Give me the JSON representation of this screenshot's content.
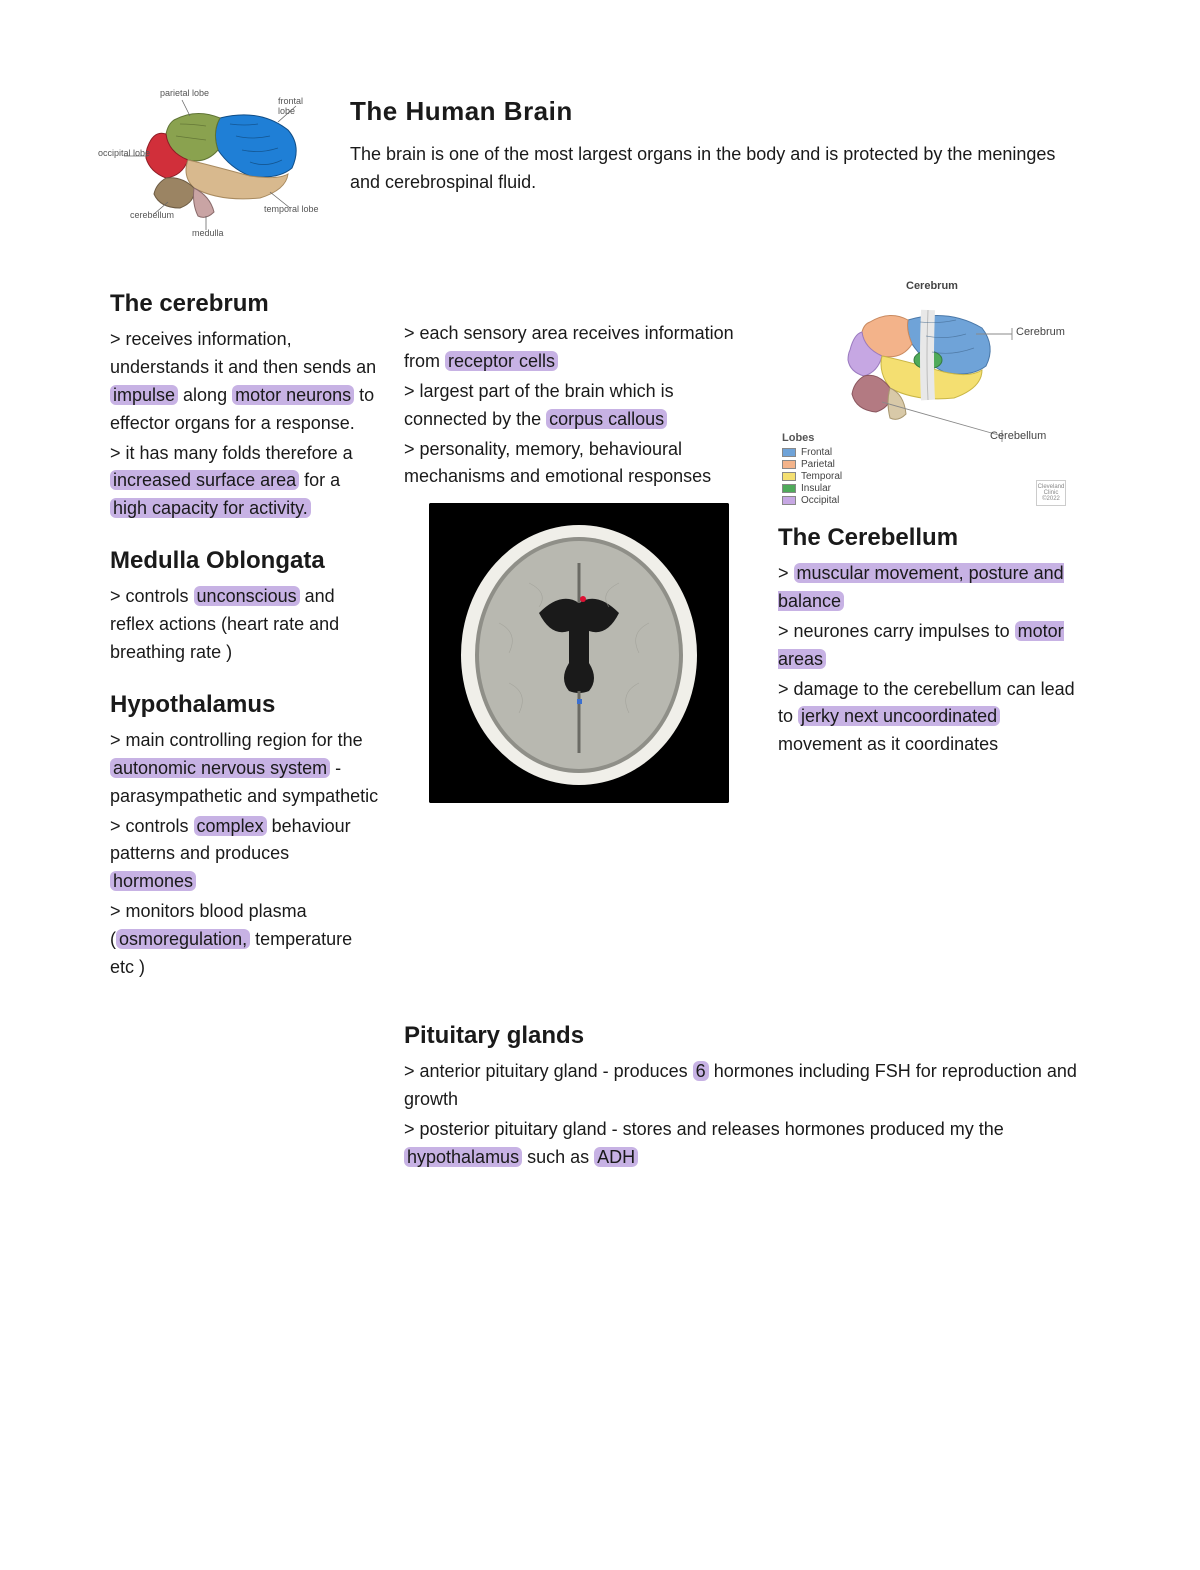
{
  "colors": {
    "highlight": "#c7b2e4",
    "text": "#1a1a1a",
    "background": "#ffffff"
  },
  "header": {
    "title": "The Human Brain",
    "intro": "The brain is one of the most largest organs in the body and is protected by the meninges and cerebrospinal fluid."
  },
  "brain_diagram": {
    "labels": {
      "parietal": "parietal lobe",
      "frontal": "frontal lobe",
      "occipital": "occipital lobe",
      "temporal": "temporal lobe",
      "cerebellum": "cerebellum",
      "medulla": "medulla"
    },
    "region_colors": {
      "frontal": "#1f7fd6",
      "parietal": "#8aa24f",
      "occipital": "#d12f3a",
      "temporal": "#d8b98e",
      "cerebellum": "#9b8463",
      "stem": "#c9a4a4"
    }
  },
  "cerebrum": {
    "heading": "The cerebrum",
    "col1_parts": [
      " > receives information, understands it and then sends an ",
      "impulse",
      " along ",
      "motor neurons",
      " to effector organs for a response."
    ],
    "col1b_parts": [
      " > it has many folds therefore a ",
      "increased surface area",
      " for a ",
      "high capacity for activity."
    ],
    "col2a_parts": [
      "> each sensory area receives information from ",
      "receptor cells"
    ],
    "col2b_parts": [
      " > largest part of the brain which is connected by the ",
      "corpus callous"
    ],
    "col2c": "> personality, memory, behavioural mechanisms and emotional responses"
  },
  "medulla": {
    "heading": "Medulla Oblongata",
    "parts": [
      "> controls ",
      "unconscious",
      " and reflex actions (heart rate and breathing rate )"
    ]
  },
  "hypothalamus": {
    "heading": "Hypothalamus",
    "p1_parts": [
      "> main controlling region for the ",
      "autonomic nervous system",
      " - parasympathetic and sympathetic"
    ],
    "p2_parts": [
      "> controls ",
      "complex",
      " behaviour patterns and produces ",
      "hormones"
    ],
    "p3_parts": [
      "> monitors blood plasma (",
      "osmoregulation,",
      " temperature etc )"
    ]
  },
  "cerebellum": {
    "heading": "The Cerebellum",
    "p1_parts": [
      "> ",
      "muscular movement, posture and balance"
    ],
    "p2_parts": [
      " > neurones carry impulses to ",
      "motor areas"
    ],
    "p3_parts": [
      " > damage to the cerebellum can lead to ",
      "jerky next uncoordinated",
      " movement as it coordinates"
    ]
  },
  "pituitary": {
    "heading": "Pituitary glands",
    "p1_parts": [
      "> anterior pituitary gland - produces ",
      "6",
      " hormones including FSH for reproduction and growth"
    ],
    "p2_parts": [
      "> posterior pituitary gland - stores and releases hormones produced my the ",
      "hypothalamus",
      " such as ",
      "ADH"
    ]
  },
  "lobe_diagram": {
    "title": "Cerebrum",
    "pointer_labels": {
      "cerebrum": "Cerebrum",
      "cerebellum": "Cerebellum"
    },
    "legend_title": "Lobes",
    "legend": [
      {
        "label": "Frontal",
        "color": "#6fa3d8"
      },
      {
        "label": "Parietal",
        "color": "#f3b38a"
      },
      {
        "label": "Temporal",
        "color": "#f4df71"
      },
      {
        "label": "Insular",
        "color": "#4faa5a"
      },
      {
        "label": "Occipital",
        "color": "#c6a7e3"
      }
    ],
    "cerebellum_color": "#b37a82",
    "credit": "Cleveland Clinic ©2022"
  }
}
